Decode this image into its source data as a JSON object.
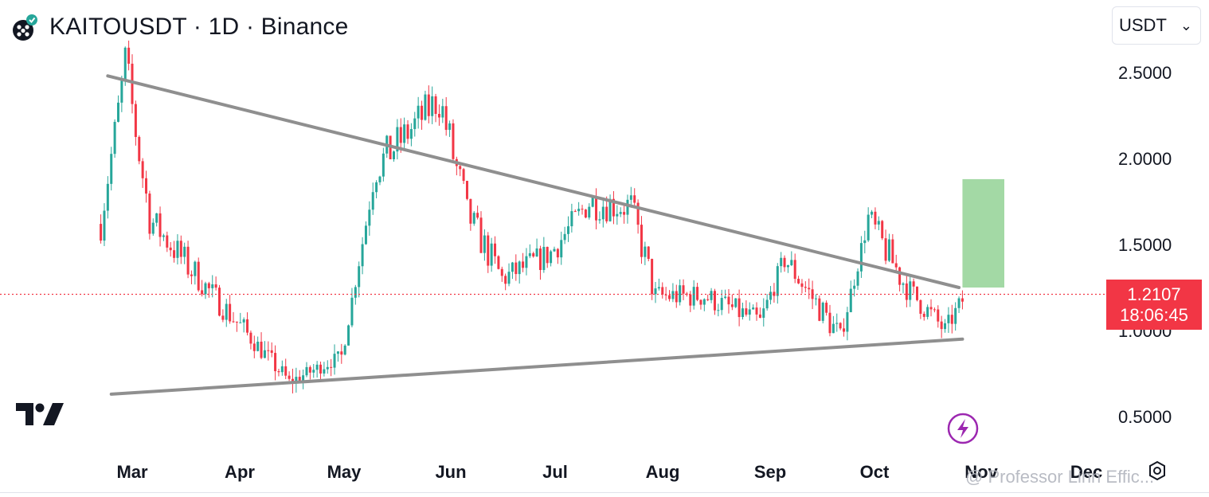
{
  "header": {
    "title": "KAITOUSDT · 1D · Binance",
    "currency": "USDT"
  },
  "price_label": {
    "price": "1.2107",
    "countdown": "18:06:45"
  },
  "watermark": "@ Professor Linn Effic...",
  "icons": [
    "exchange-logo-icon",
    "tradingview-logo-icon",
    "lightning-icon",
    "settings-icon",
    "chevron-down-icon"
  ],
  "colors": {
    "up": "#26a69a",
    "down": "#f23645",
    "trendline": "#8f8f8f",
    "target_zone": "#a3d9a5",
    "price_line": "#f23645"
  },
  "chart_data": {
    "type": "candlestick",
    "symbol": "KAITOUSDT",
    "interval": "1D",
    "exchange": "Binance",
    "y_ticks": [
      "2.5000",
      "2.0000",
      "1.5000",
      "1.0000",
      "0.5000"
    ],
    "x_ticks": [
      "Mar",
      "Apr",
      "May",
      "Jun",
      "Jul",
      "Aug",
      "Sep",
      "Oct",
      "Nov",
      "Dec"
    ],
    "ylim": [
      0.3,
      2.9
    ],
    "last_price": 1.2107,
    "upper_trendline": [
      {
        "date": "2025-02-22",
        "price": 2.48
      },
      {
        "date": "2025-10-24",
        "price": 1.25
      }
    ],
    "lower_trendline": [
      {
        "date": "2025-02-23",
        "price": 0.63
      },
      {
        "date": "2025-10-25",
        "price": 0.95
      }
    ],
    "target_zone": {
      "from_date": "2025-10-25",
      "to_date": "2025-11-06",
      "low": 1.25,
      "high": 1.88
    },
    "series_key_points": [
      {
        "date": "2025-02-20",
        "price": 1.62
      },
      {
        "date": "2025-02-27",
        "price": 2.55
      },
      {
        "date": "2025-03-06",
        "price": 1.65
      },
      {
        "date": "2025-03-20",
        "price": 1.3
      },
      {
        "date": "2025-04-03",
        "price": 0.98
      },
      {
        "date": "2025-04-15",
        "price": 0.7
      },
      {
        "date": "2025-04-30",
        "price": 0.85
      },
      {
        "date": "2025-05-10",
        "price": 1.95
      },
      {
        "date": "2025-05-28",
        "price": 2.35
      },
      {
        "date": "2025-06-05",
        "price": 1.68
      },
      {
        "date": "2025-06-15",
        "price": 1.3
      },
      {
        "date": "2025-06-29",
        "price": 1.45
      },
      {
        "date": "2025-07-10",
        "price": 1.75
      },
      {
        "date": "2025-07-22",
        "price": 1.72
      },
      {
        "date": "2025-07-29",
        "price": 1.2
      },
      {
        "date": "2025-08-12",
        "price": 1.2
      },
      {
        "date": "2025-08-28",
        "price": 1.05
      },
      {
        "date": "2025-09-04",
        "price": 1.42
      },
      {
        "date": "2025-09-20",
        "price": 0.96
      },
      {
        "date": "2025-09-28",
        "price": 1.65
      },
      {
        "date": "2025-10-09",
        "price": 1.25
      },
      {
        "date": "2025-10-20",
        "price": 1.0
      },
      {
        "date": "2025-10-26",
        "price": 1.21
      }
    ]
  }
}
